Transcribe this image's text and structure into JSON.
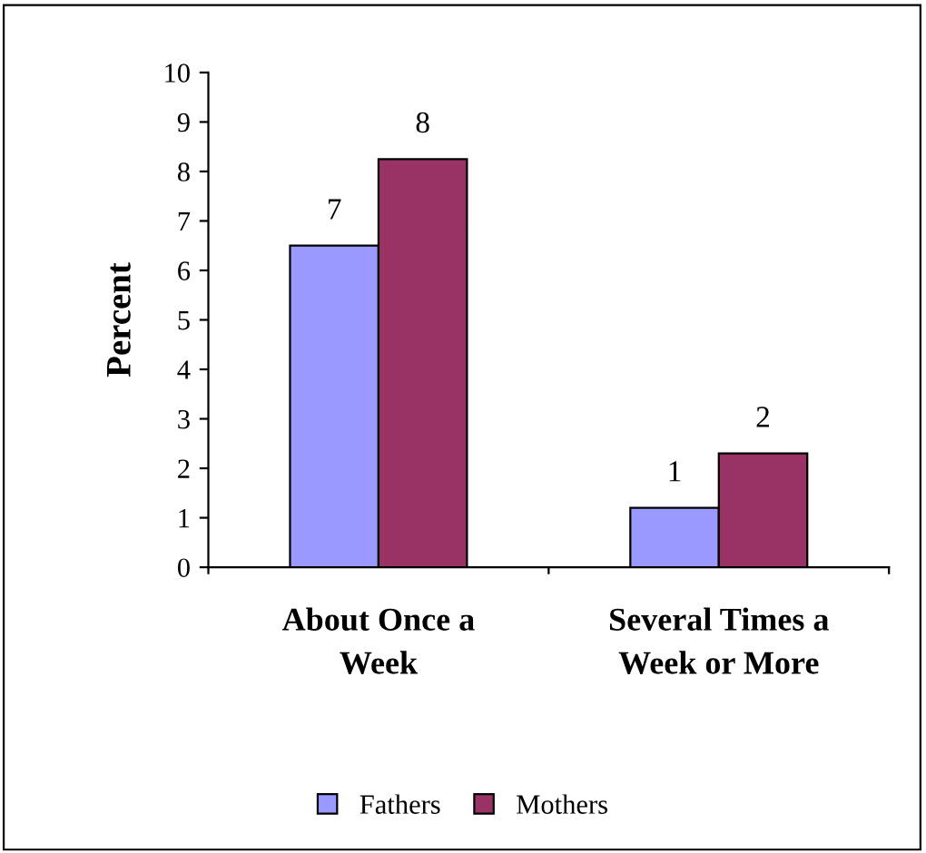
{
  "chart_data": {
    "type": "bar",
    "ylabel": "Percent",
    "categories": [
      "About Once a\nWeek",
      "Several Times a\nWeek or More"
    ],
    "series": [
      {
        "name": "Fathers",
        "color": "#9999ff",
        "values": [
          6.5,
          1.2
        ],
        "value_labels": [
          "7",
          "1"
        ]
      },
      {
        "name": "Mothers",
        "color": "#993366",
        "values": [
          8.25,
          2.3
        ],
        "value_labels": [
          "8",
          "2"
        ]
      }
    ],
    "ylim": [
      0,
      10
    ],
    "yticks": [
      0,
      1,
      2,
      3,
      4,
      5,
      6,
      7,
      8,
      9,
      10
    ],
    "grid": false,
    "legend": "bottom"
  }
}
